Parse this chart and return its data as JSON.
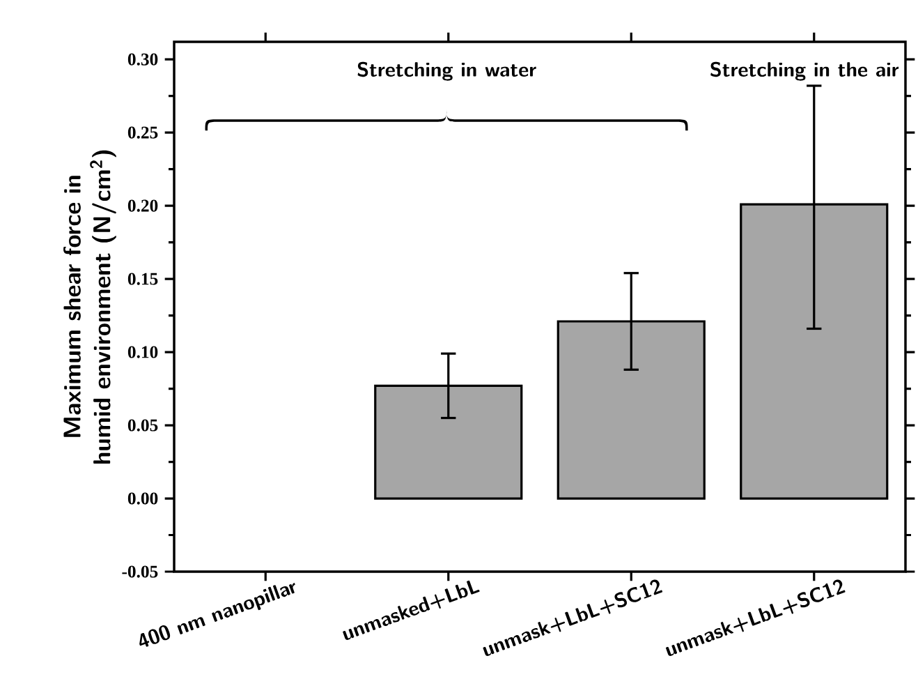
{
  "chart_data": {
    "type": "bar",
    "ylabel": "Maximum shear force in humid environment (N/cm$^{2}$)",
    "categories": [
      "400 nm nanopillar",
      "unmasked+LbL",
      "unmask+LbL+SC12",
      "unmask+LbL+SC12"
    ],
    "values": [
      0.0,
      0.077,
      0.121,
      0.201
    ],
    "errors": [
      null,
      [
        0.055,
        0.099
      ],
      [
        0.088,
        0.154
      ],
      [
        0.116,
        0.282
      ]
    ],
    "color": "#a6a6a6",
    "ylim": [
      -0.05,
      0.312
    ],
    "yticks": [
      {
        "value": -0.05,
        "label": "-0.05"
      },
      {
        "value": 0,
        "label": "0.00"
      },
      {
        "value": 0.05,
        "label": "0.05"
      },
      {
        "value": 0.1,
        "label": "0.10"
      },
      {
        "value": 0.15,
        "label": "0.15"
      },
      {
        "value": 0.2,
        "label": "0.20"
      },
      {
        "value": 0.25,
        "label": "0.25"
      },
      {
        "value": 0.3,
        "label": "0.30"
      }
    ],
    "annotations": [
      "Stretching in water",
      "Stretching in the air"
    ]
  }
}
